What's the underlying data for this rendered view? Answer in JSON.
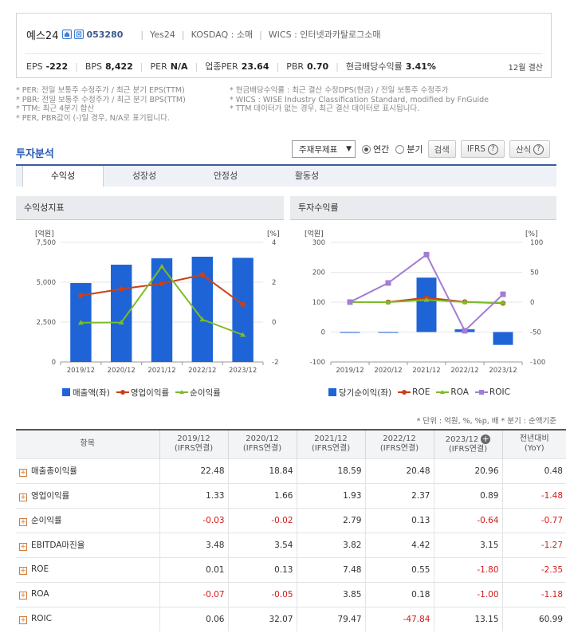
{
  "header": {
    "name": "예스24",
    "code": "053280",
    "english": "Yes24",
    "market": "KOSDAQ : 소매",
    "wics": "WICS : 인터넷과카탈로그소매",
    "metrics": [
      {
        "key": "EPS",
        "value": "-222"
      },
      {
        "key": "BPS",
        "value": "8,422"
      },
      {
        "key": "PER",
        "value": "N/A"
      },
      {
        "key": "업종PER",
        "value": "23.64"
      },
      {
        "key": "PBR",
        "value": "0.70"
      },
      {
        "key": "현금배당수익률",
        "value": "3.41%"
      }
    ],
    "settlement": "12월 결산"
  },
  "notes": {
    "left": [
      "* PER: 전일 보통주 수정주가 / 최근 분기 EPS(TTM)",
      "* PBR: 전일 보통주 수정주가 / 최근 분기 BPS(TTM)",
      "* TTM: 최근 4분기 합산",
      "* PER, PBR값이 (-)일 경우, N/A로 표기됩니다."
    ],
    "right": [
      "* 현금배당수익률 : 최근 결산 수정DPS(현금) / 전일 보통주 수정주가",
      "* WICS : WISE Industry Classification Standard, modified by FnGuide",
      "* TTM 데이터가 없는 경우, 최근 결산 데이터로 표시됩니다."
    ]
  },
  "section_title": "투자분석",
  "controls": {
    "select_value": "주재무제표",
    "radio_annual": "연간",
    "radio_quarter": "분기",
    "search": "검색",
    "ifrs": "IFRS",
    "formula": "산식"
  },
  "tabs": [
    "수익성",
    "성장성",
    "안정성",
    "활동성"
  ],
  "left_panel": {
    "title": "수익성지표",
    "legend": [
      "매출액(좌)",
      "영업이익률",
      "순이익률"
    ]
  },
  "right_panel": {
    "title": "투자수익률",
    "legend": [
      "당기순이익(좌)",
      "ROE",
      "ROA",
      "ROIC"
    ]
  },
  "chart_data": [
    {
      "type": "bar",
      "categories": [
        "2019/12",
        "2020/12",
        "2021/12",
        "2022/12",
        "2023/12"
      ],
      "ylabel": "[억원]",
      "y2label": "[%]",
      "ylim": [
        0,
        7500
      ],
      "yticks": [
        "0",
        "2,500",
        "5,000",
        "7,500"
      ],
      "y2lim": [
        -2,
        4
      ],
      "y2ticks": [
        "-2",
        "0",
        "2",
        "4"
      ],
      "series": [
        {
          "name": "매출액(좌)",
          "type": "bar",
          "axis": "left",
          "values": [
            4950,
            6100,
            6500,
            6600,
            6530
          ]
        },
        {
          "name": "영업이익률",
          "type": "line",
          "axis": "right",
          "values": [
            1.33,
            1.66,
            1.93,
            2.37,
            0.89
          ]
        },
        {
          "name": "순이익률",
          "type": "line",
          "axis": "right",
          "values": [
            -0.03,
            -0.02,
            2.79,
            0.13,
            -0.64
          ]
        }
      ],
      "colors": [
        "#1e64d6",
        "#c9401a",
        "#7dbb28"
      ],
      "legend": "bottom"
    },
    {
      "type": "bar",
      "categories": [
        "2019/12",
        "2020/12",
        "2021/12",
        "2022/12",
        "2023/12"
      ],
      "ylabel": "[억원]",
      "y2label": "[%]",
      "ylim": [
        -100,
        300
      ],
      "yticks": [
        "-100",
        "0",
        "100",
        "200",
        "300"
      ],
      "y2lim": [
        -100,
        100
      ],
      "y2ticks": [
        "-100",
        "-50",
        "0",
        "50",
        "100"
      ],
      "series": [
        {
          "name": "당기순이익(좌)",
          "type": "bar",
          "axis": "left",
          "values": [
            -1,
            -1,
            182,
            9,
            -43
          ]
        },
        {
          "name": "ROE",
          "type": "line",
          "axis": "right",
          "values": [
            0.01,
            0.13,
            7.48,
            0.55,
            -1.8
          ]
        },
        {
          "name": "ROA",
          "type": "line",
          "axis": "right",
          "values": [
            -0.07,
            -0.05,
            3.85,
            0.18,
            -1.0
          ]
        },
        {
          "name": "ROIC",
          "type": "line",
          "axis": "right",
          "values": [
            0.06,
            32.07,
            79.47,
            -47.84,
            13.15
          ]
        }
      ],
      "colors": [
        "#1e64d6",
        "#c9401a",
        "#7dbb28",
        "#a37cd6"
      ],
      "legend": "bottom"
    },
    {
      "type": "table",
      "unit_note": "* 단위 : 억원, %, %p, 배     * 분기 : 순액기준",
      "columns": [
        {
          "label": "항목",
          "sub": ""
        },
        {
          "label": "2019/12",
          "sub": "(IFRS연결)"
        },
        {
          "label": "2020/12",
          "sub": "(IFRS연결)"
        },
        {
          "label": "2021/12",
          "sub": "(IFRS연결)"
        },
        {
          "label": "2022/12",
          "sub": "(IFRS연결)"
        },
        {
          "label": "2023/12",
          "sub": "(IFRS연결)"
        },
        {
          "label": "전년대비",
          "sub": "(YoY)"
        }
      ],
      "rows": [
        {
          "label": "매출총이익률",
          "values": [
            "22.48",
            "18.84",
            "18.59",
            "20.48",
            "20.96",
            "0.48"
          ]
        },
        {
          "label": "영업이익률",
          "values": [
            "1.33",
            "1.66",
            "1.93",
            "2.37",
            "0.89",
            "-1.48"
          ]
        },
        {
          "label": "순이익률",
          "values": [
            "-0.03",
            "-0.02",
            "2.79",
            "0.13",
            "-0.64",
            "-0.77"
          ]
        },
        {
          "label": "EBITDA마진율",
          "values": [
            "3.48",
            "3.54",
            "3.82",
            "4.42",
            "3.15",
            "-1.27"
          ]
        },
        {
          "label": "ROE",
          "values": [
            "0.01",
            "0.13",
            "7.48",
            "0.55",
            "-1.80",
            "-2.35"
          ]
        },
        {
          "label": "ROA",
          "values": [
            "-0.07",
            "-0.05",
            "3.85",
            "0.18",
            "-1.00",
            "-1.18"
          ]
        },
        {
          "label": "ROIC",
          "values": [
            "0.06",
            "32.07",
            "79.47",
            "-47.84",
            "13.15",
            "60.99"
          ]
        }
      ]
    }
  ]
}
